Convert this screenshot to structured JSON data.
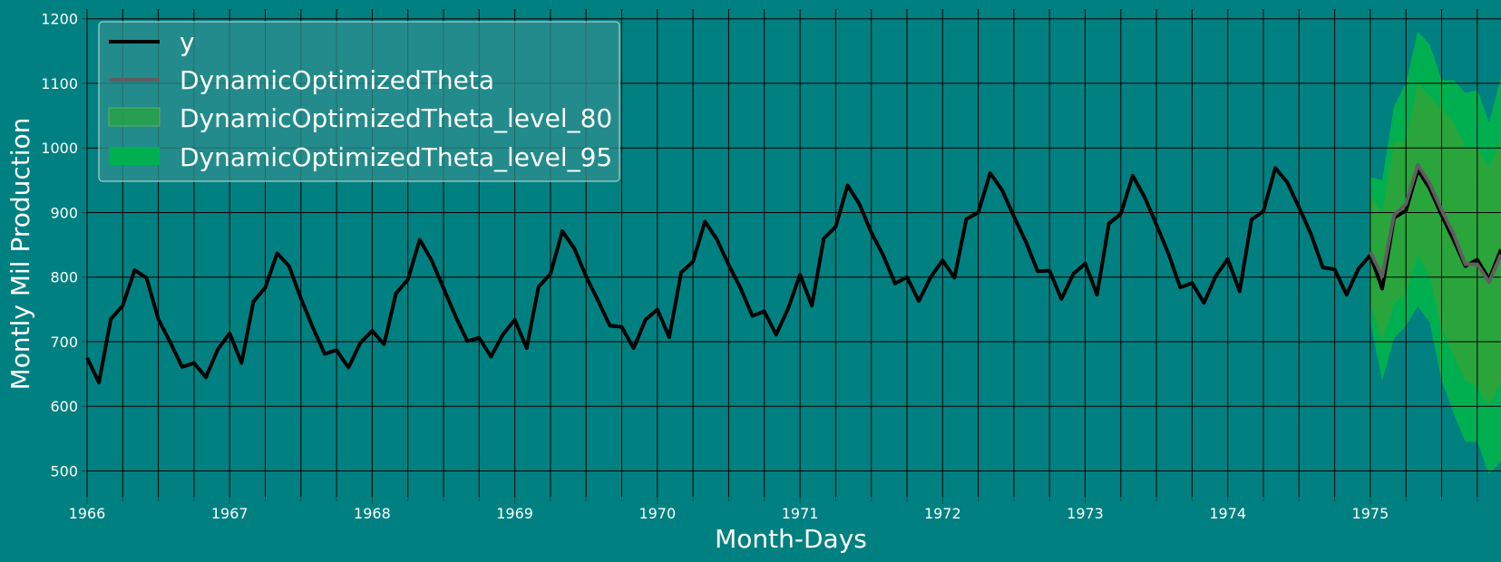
{
  "chart_data": {
    "type": "line",
    "xlabel": "Month-Days",
    "ylabel": "Montly Mil Production",
    "x_ticks": [
      "1966",
      "1967",
      "1968",
      "1969",
      "1970",
      "1971",
      "1972",
      "1973",
      "1974",
      "1975"
    ],
    "y_ticks": [
      500,
      600,
      700,
      800,
      900,
      1000,
      1100,
      1200
    ],
    "xlim": [
      "1966-01",
      "1975-12"
    ],
    "ylim": [
      460,
      1215
    ],
    "grid": true,
    "legend_position": "top-left",
    "colors": {
      "background": "#008080",
      "y": "#000000",
      "forecast": "#5f5f5f",
      "level_80": "#2aa53c",
      "level_95": "#00b050",
      "grid": "#000000"
    },
    "series": [
      {
        "name": "y",
        "x_start": "1966-01",
        "values": [
          675,
          637,
          735,
          756,
          811,
          799,
          735,
          699,
          661,
          667,
          645,
          688,
          713,
          667,
          762,
          784,
          837,
          817,
          767,
          722,
          681,
          687,
          660,
          698,
          717,
          696,
          775,
          796,
          858,
          826,
          783,
          740,
          701,
          706,
          677,
          711,
          734,
          690,
          785,
          805,
          871,
          845,
          801,
          764,
          725,
          723,
          690,
          734,
          750,
          707,
          807,
          824,
          886,
          859,
          819,
          783,
          740,
          747,
          711,
          751,
          804,
          756,
          860,
          878,
          942,
          913,
          869,
          834,
          790,
          800,
          763,
          800,
          826,
          799,
          890,
          900,
          961,
          935,
          894,
          855,
          809,
          810,
          766,
          805,
          821,
          773,
          883,
          898,
          957,
          924,
          881,
          837,
          784,
          791,
          760,
          802,
          828,
          778,
          889,
          902,
          969,
          947,
          908,
          867,
          815,
          812,
          773,
          813,
          834,
          782,
          892,
          903,
          966,
          937,
          896,
          858,
          817,
          827,
          797,
          843
        ]
      },
      {
        "name": "DynamicOptimizedTheta",
        "x_start": "1975-01",
        "values": [
          839,
          801,
          896,
          913,
          974,
          945,
          904,
          867,
          820,
          820,
          792,
          835
        ]
      },
      {
        "name": "DynamicOptimizedTheta_level_80",
        "x_start": "1975-01",
        "lower": [
          760,
          700,
          760,
          775,
          835,
          800,
          720,
          680,
          640,
          630,
          600,
          640
        ],
        "upper": [
          925,
          900,
          1010,
          1010,
          1100,
          1080,
          1060,
          1040,
          1000,
          1000,
          970,
          1015
        ]
      },
      {
        "name": "DynamicOptimizedTheta_level_95",
        "x_start": "1975-01",
        "lower": [
          730,
          640,
          705,
          725,
          755,
          730,
          640,
          590,
          545,
          545,
          495,
          515
        ],
        "upper": [
          955,
          950,
          1065,
          1100,
          1180,
          1160,
          1105,
          1105,
          1085,
          1090,
          1040,
          1110
        ]
      }
    ]
  }
}
